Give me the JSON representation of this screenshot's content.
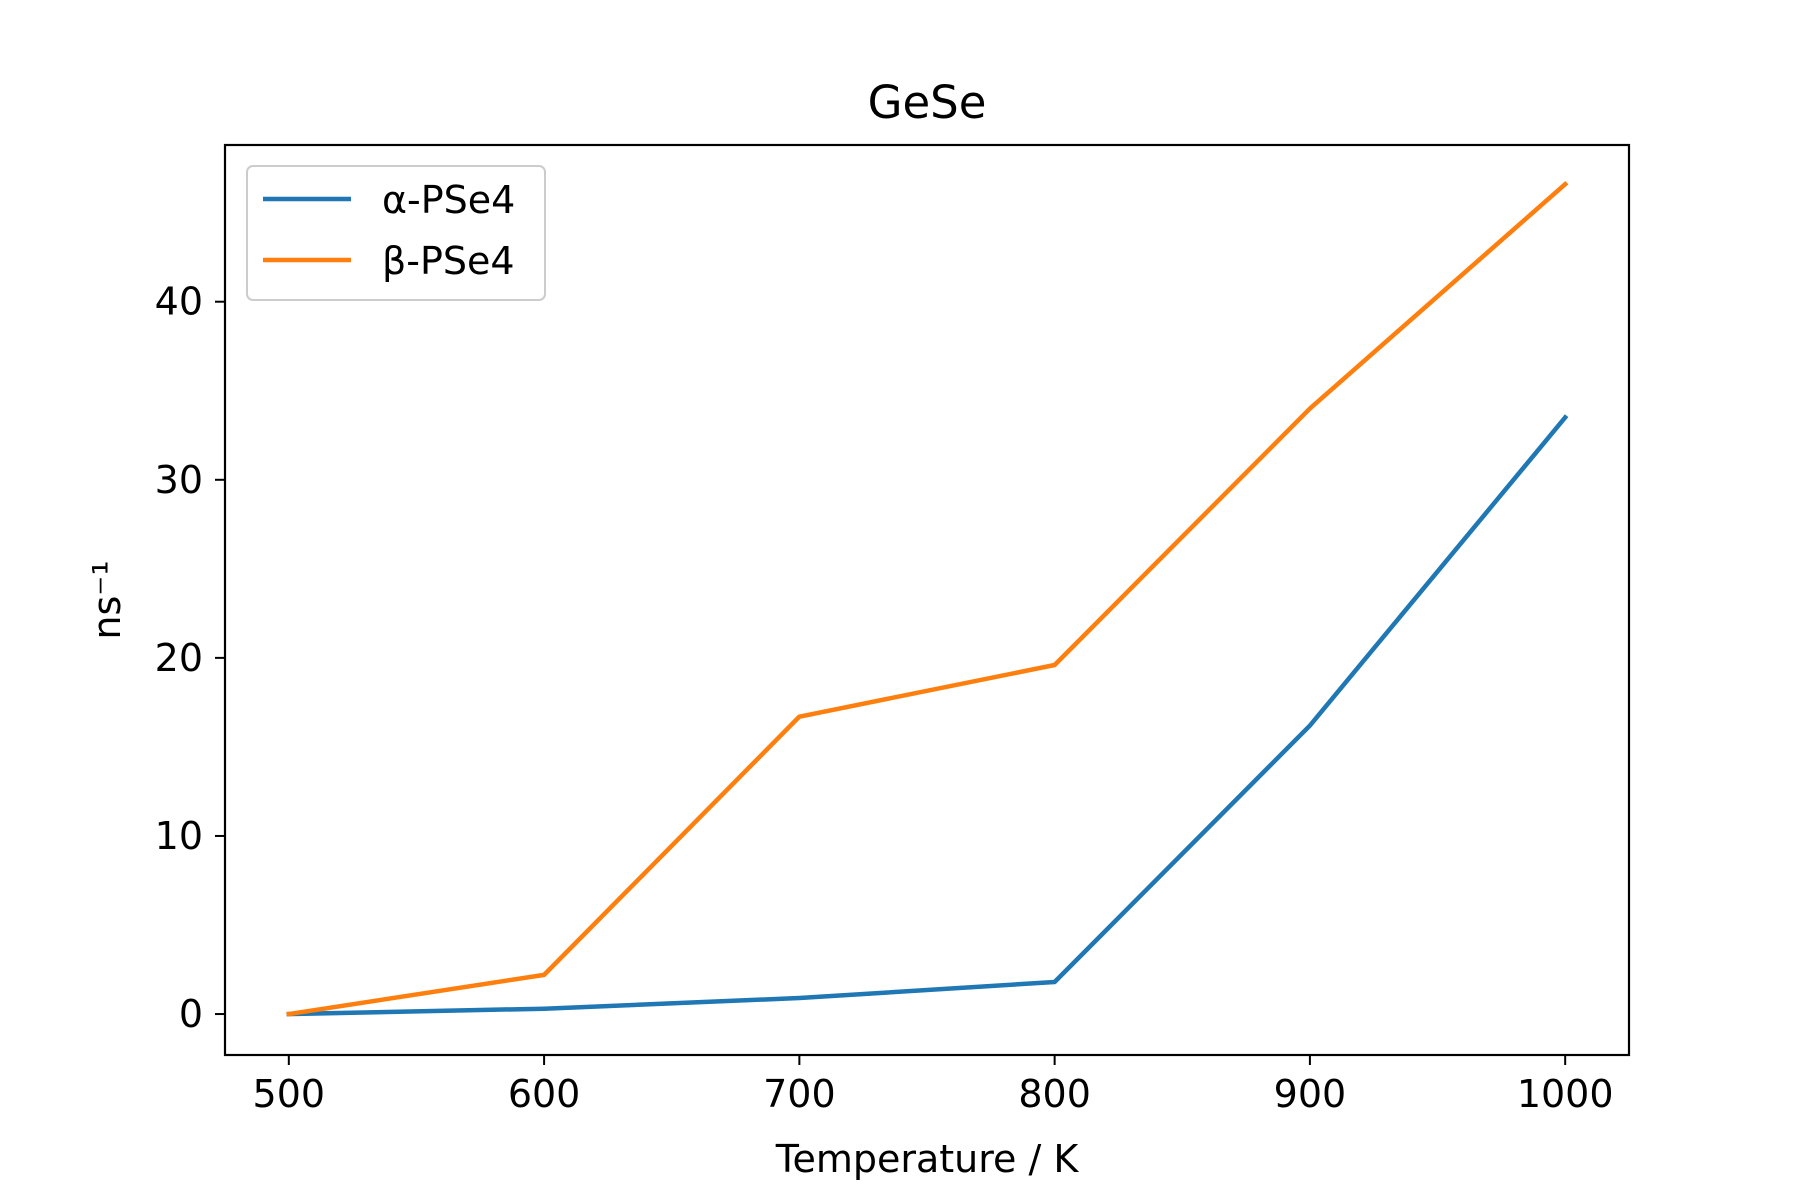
{
  "chart_data": {
    "type": "line",
    "title": "GeSe",
    "xlabel": "Temperature / K",
    "ylabel": "ns⁻¹",
    "x": [
      500,
      600,
      700,
      800,
      900,
      1000
    ],
    "xlim": [
      475,
      1025
    ],
    "ylim": [
      -2.3,
      48.8
    ],
    "xticks": [
      500,
      600,
      700,
      800,
      900,
      1000
    ],
    "xtick_labels": [
      "500",
      "600",
      "700",
      "800",
      "900",
      "1000"
    ],
    "yticks": [
      0,
      10,
      20,
      30,
      40
    ],
    "ytick_labels": [
      "0",
      "10",
      "20",
      "30",
      "40"
    ],
    "grid": false,
    "legend_position": "top-left",
    "series": [
      {
        "name": "α-PSe4",
        "color": "#1f77b4",
        "values": [
          0.0,
          0.3,
          0.9,
          1.8,
          16.2,
          33.5
        ]
      },
      {
        "name": "β-PSe4",
        "color": "#ff7f0e",
        "values": [
          0.0,
          2.2,
          16.7,
          19.6,
          34.0,
          46.6
        ]
      }
    ]
  }
}
